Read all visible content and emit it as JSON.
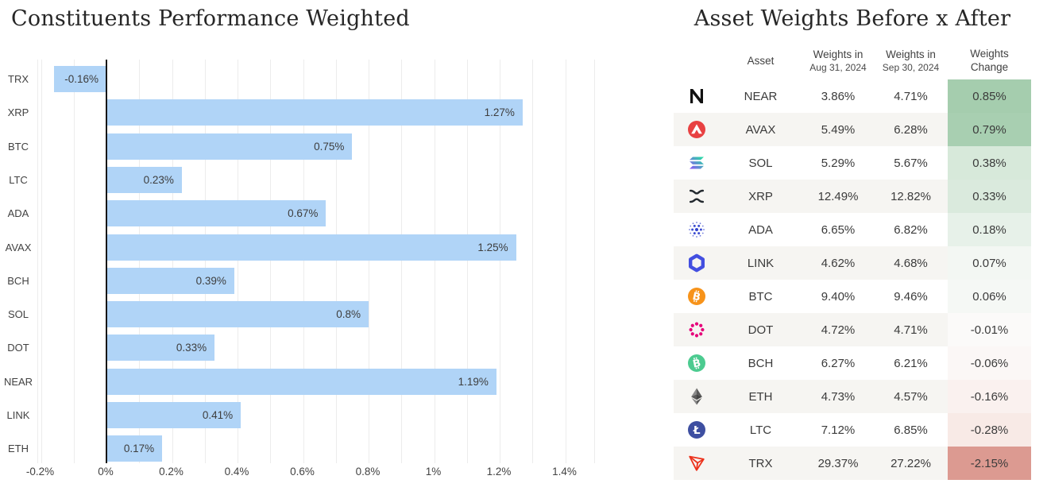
{
  "chart": {
    "title": "Constituents Performance Weighted"
  },
  "chart_data": {
    "type": "bar",
    "orientation": "horizontal",
    "title": "Constituents Performance Weighted",
    "categories": [
      "TRX",
      "XRP",
      "BTC",
      "LTC",
      "ADA",
      "AVAX",
      "BCH",
      "SOL",
      "DOT",
      "NEAR",
      "LINK",
      "ETH"
    ],
    "values": [
      -0.16,
      1.27,
      0.75,
      0.23,
      0.67,
      1.25,
      0.39,
      0.8,
      0.33,
      1.19,
      0.41,
      0.17
    ],
    "value_labels": [
      "-0.16%",
      "1.27%",
      "0.75%",
      "0.23%",
      "0.67%",
      "1.25%",
      "0.39%",
      "0.8%",
      "0.33%",
      "1.19%",
      "0.41%",
      "0.17%"
    ],
    "unit": "%",
    "xlim": [
      -0.21,
      1.49
    ],
    "x_ticks": [
      -0.2,
      0,
      0.2,
      0.4,
      0.6,
      0.8,
      1,
      1.2,
      1.4
    ],
    "x_tick_labels": [
      "-0.2%",
      "0%",
      "0.2%",
      "0.4%",
      "0.6%",
      "0.8%",
      "1%",
      "1.2%",
      "1.4%"
    ],
    "grid": "vertical gridlines every 0.1%",
    "legend": "none",
    "bar_color": "#b0d4f7",
    "zero_axis_color": "#161616",
    "label_color": "#3d3d3d"
  },
  "table": {
    "title": "Asset Weights Before x After",
    "columns": {
      "asset": "Asset",
      "before_line1": "Weights in",
      "before_line2": "Aug 31, 2024",
      "after_line1": "Weights in",
      "after_line2": "Sep 30, 2024",
      "change_line1": "Weights",
      "change_line2": "Change"
    },
    "stripe_color": "#f6f5f2",
    "rows": [
      {
        "icon": "near-icon",
        "asset": "NEAR",
        "weight_before": "3.86%",
        "weight_after": "4.71%",
        "weight_change": "0.85%",
        "change_bg": "#a5cdae"
      },
      {
        "icon": "avax-icon",
        "asset": "AVAX",
        "weight_before": "5.49%",
        "weight_after": "6.28%",
        "weight_change": "0.79%",
        "change_bg": "#a8cfb1"
      },
      {
        "icon": "sol-icon",
        "asset": "SOL",
        "weight_before": "5.29%",
        "weight_after": "5.67%",
        "weight_change": "0.38%",
        "change_bg": "#d7e9da"
      },
      {
        "icon": "xrp-icon",
        "asset": "XRP",
        "weight_before": "12.49%",
        "weight_after": "12.82%",
        "weight_change": "0.33%",
        "change_bg": "#daeadd"
      },
      {
        "icon": "ada-icon",
        "asset": "ADA",
        "weight_before": "6.65%",
        "weight_after": "6.82%",
        "weight_change": "0.18%",
        "change_bg": "#e7f1e9"
      },
      {
        "icon": "link-icon",
        "asset": "LINK",
        "weight_before": "4.62%",
        "weight_after": "4.68%",
        "weight_change": "0.07%",
        "change_bg": "#f3f7f3"
      },
      {
        "icon": "btc-icon",
        "asset": "BTC",
        "weight_before": "9.40%",
        "weight_after": "9.46%",
        "weight_change": "0.06%",
        "change_bg": "#f5f8f5"
      },
      {
        "icon": "dot-icon",
        "asset": "DOT",
        "weight_before": "4.72%",
        "weight_after": "4.71%",
        "weight_change": "-0.01%",
        "change_bg": "#fbfaf9"
      },
      {
        "icon": "bch-icon",
        "asset": "BCH",
        "weight_before": "6.27%",
        "weight_after": "6.21%",
        "weight_change": "-0.06%",
        "change_bg": "#fbf7f6"
      },
      {
        "icon": "eth-icon",
        "asset": "ETH",
        "weight_before": "4.73%",
        "weight_after": "4.57%",
        "weight_change": "-0.16%",
        "change_bg": "#faf1ef"
      },
      {
        "icon": "ltc-icon",
        "asset": "LTC",
        "weight_before": "7.12%",
        "weight_after": "6.85%",
        "weight_change": "-0.28%",
        "change_bg": "#f8eae6"
      },
      {
        "icon": "trx-icon",
        "asset": "TRX",
        "weight_before": "29.37%",
        "weight_after": "27.22%",
        "weight_change": "-2.15%",
        "change_bg": "#dc9a91"
      }
    ]
  },
  "icon_colors": {
    "near": "#111111",
    "avax": "#e84142",
    "sol_gradient_start": "#9945ff",
    "sol_gradient_end": "#14f195",
    "xrp": "#23292f",
    "ada": "#3042cf",
    "link": "#434fe0",
    "btc": "#f7931a",
    "dot": "#e6007a",
    "bch": "#4ccb90",
    "eth_light": "#8a8a8a",
    "eth_mid": "#5a5a5a",
    "eth_dark": "#454545",
    "ltc": "#3e4fa1",
    "trx": "#ec321c"
  }
}
